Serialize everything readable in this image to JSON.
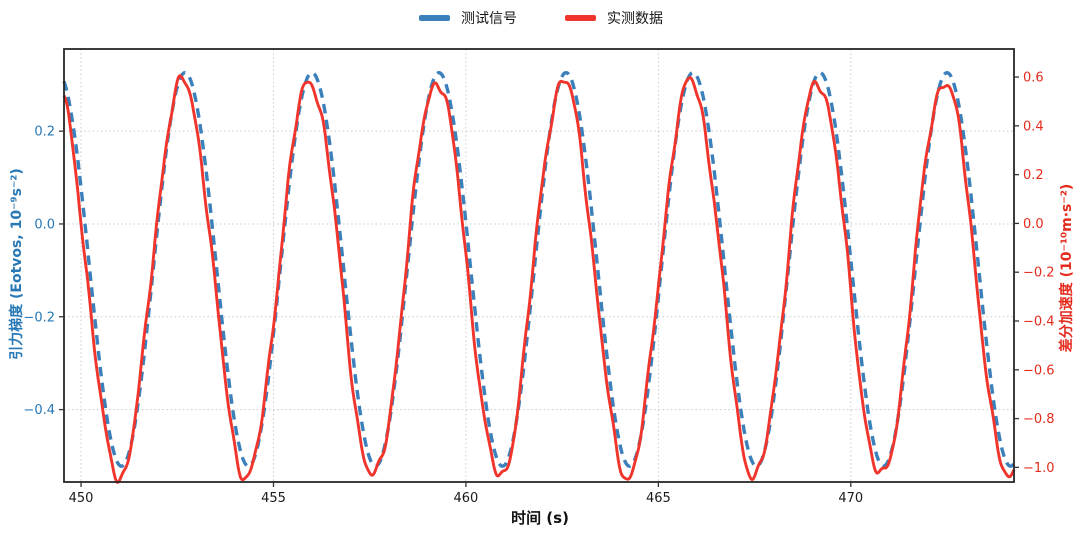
{
  "figure": {
    "background": "#ffffff"
  },
  "legend": {
    "position": "top-center",
    "items": [
      {
        "label": "测试信号",
        "color": "#3b80ba",
        "style": "dashed"
      },
      {
        "label": "实测数据",
        "color": "#f0352c",
        "style": "solid"
      }
    ]
  },
  "chart_data": {
    "type": "line",
    "title": "",
    "xlabel": "时间 (s)",
    "x_range": [
      449.557,
      474.24
    ],
    "x_ticks": [
      450,
      455,
      460,
      465,
      470
    ],
    "x_tick_labels": [
      "450",
      "455",
      "460",
      "465",
      "470"
    ],
    "grid": {
      "show": true,
      "style": "dotted",
      "color": "#c9c9c9",
      "vertical_at": "x_ticks",
      "horizontal_at": "left_axis_ticks"
    },
    "legend_position": "top-center",
    "axes": {
      "left": {
        "label": "引力梯度 (Eotvos, 10⁻⁹s⁻²)",
        "color": "#2878b5",
        "range": [
          -0.556,
          0.377
        ],
        "ticks": [
          0.2,
          0.0,
          -0.2,
          -0.4
        ],
        "tick_labels": [
          "0.2",
          "0.0",
          "−0.2",
          "−0.4"
        ]
      },
      "right": {
        "label": "差分加速度 (10⁻¹⁰m·s⁻²)",
        "color": "#e42b1e",
        "range": [
          -1.06,
          0.715
        ],
        "ticks": [
          0.6,
          0.4,
          0.2,
          0.0,
          -0.2,
          -0.4,
          -0.6,
          -0.8,
          -1.0
        ],
        "tick_labels": [
          "0.6",
          "0.4",
          "0.2",
          "0.0",
          "−0.2",
          "−0.4",
          "−0.6",
          "−0.8",
          "−1.0"
        ]
      }
    },
    "series": [
      {
        "name": "测试信号",
        "axis": "left",
        "color": "#3b80ba",
        "style": "dashed",
        "line_width": 3.4,
        "model": {
          "kind": "cosine",
          "offset": -0.098,
          "amplitude": 0.424,
          "period_s": 3.3,
          "peak_t": 452.7
        },
        "peak_value": 0.326,
        "trough_value": -0.522
      },
      {
        "name": "实测数据",
        "axis": "right",
        "color": "#f0352c",
        "style": "solid",
        "line_width": 2.9,
        "model": {
          "kind": "cosine",
          "offset": -0.228,
          "amplitude": 0.81,
          "period_s": 3.3,
          "peak_t": 452.64
        },
        "noise_harmonics": [
          {
            "amp": 0.016,
            "period_s": 1.01,
            "phase": 0.8
          },
          {
            "amp": 0.012,
            "period_s": 0.47,
            "phase": 2.6
          },
          {
            "amp": 0.008,
            "period_s": 0.29,
            "phase": 5.1
          }
        ],
        "peak_value": 0.585,
        "trough_value": -1.04
      }
    ]
  }
}
